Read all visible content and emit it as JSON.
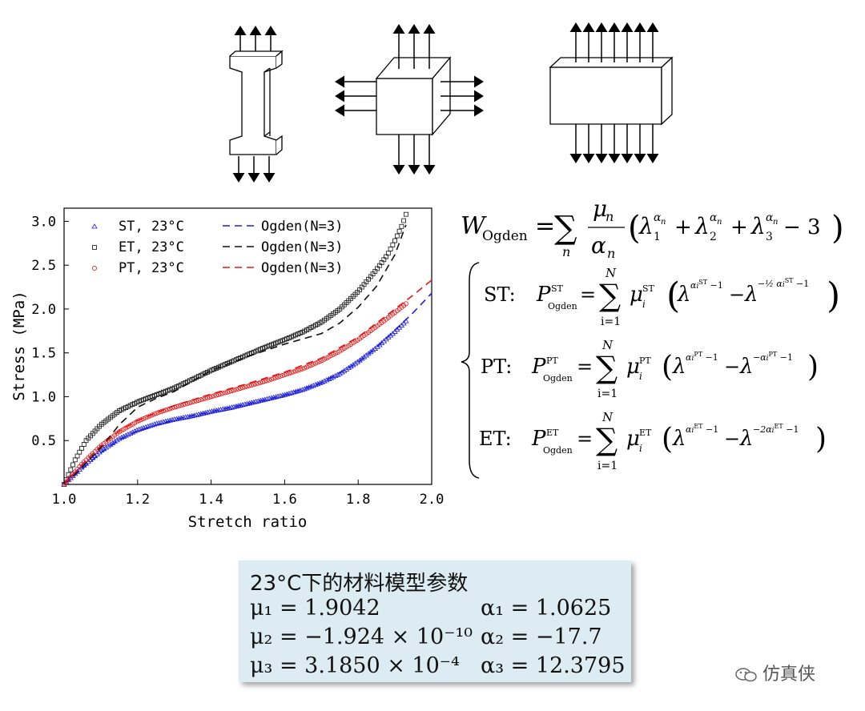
{
  "chart_data": {
    "type": "line",
    "xlabel": "Stretch ratio",
    "ylabel": "Stress (MPa)",
    "xlim": [
      1.0,
      2.0
    ],
    "ylim": [
      0.0,
      3.15
    ],
    "xticks": [
      "1.0",
      "1.2",
      "1.4",
      "1.6",
      "1.8",
      "2.0"
    ],
    "yticks": [
      "0.5",
      "1.0",
      "1.5",
      "2.0",
      "2.5",
      "3.0"
    ],
    "legend_position": "top-left",
    "grid": false,
    "series": [
      {
        "name": "ST, 23°C",
        "style": "markers",
        "marker": "triangle",
        "color": "#1f1fd6",
        "x": [
          1.0,
          1.05,
          1.1,
          1.15,
          1.2,
          1.25,
          1.3,
          1.35,
          1.4,
          1.45,
          1.5,
          1.55,
          1.6,
          1.65,
          1.7,
          1.75,
          1.8,
          1.85,
          1.9,
          1.93
        ],
        "y": [
          0.0,
          0.2,
          0.38,
          0.52,
          0.62,
          0.69,
          0.74,
          0.78,
          0.83,
          0.87,
          0.92,
          0.97,
          1.02,
          1.08,
          1.16,
          1.26,
          1.4,
          1.56,
          1.74,
          1.86
        ]
      },
      {
        "name": "ET, 23°C",
        "style": "markers",
        "marker": "square",
        "color": "#111111",
        "x": [
          1.0,
          1.03,
          1.06,
          1.1,
          1.15,
          1.2,
          1.25,
          1.3,
          1.35,
          1.4,
          1.45,
          1.5,
          1.55,
          1.6,
          1.65,
          1.7,
          1.75,
          1.8,
          1.85,
          1.88,
          1.9,
          1.92,
          1.93
        ],
        "y": [
          0.0,
          0.28,
          0.5,
          0.68,
          0.84,
          0.94,
          1.02,
          1.1,
          1.2,
          1.3,
          1.39,
          1.48,
          1.57,
          1.65,
          1.74,
          1.85,
          2.0,
          2.2,
          2.45,
          2.62,
          2.78,
          2.96,
          3.08
        ]
      },
      {
        "name": "PT, 23°C",
        "style": "markers",
        "marker": "circle",
        "color": "#e01818",
        "x": [
          1.0,
          1.05,
          1.1,
          1.15,
          1.2,
          1.25,
          1.3,
          1.35,
          1.4,
          1.45,
          1.5,
          1.55,
          1.6,
          1.65,
          1.7,
          1.75,
          1.8,
          1.85,
          1.9,
          1.93
        ],
        "y": [
          0.0,
          0.24,
          0.44,
          0.6,
          0.72,
          0.81,
          0.88,
          0.94,
          1.0,
          1.06,
          1.12,
          1.18,
          1.25,
          1.32,
          1.41,
          1.52,
          1.65,
          1.8,
          1.96,
          2.06
        ]
      },
      {
        "name": "Ogden(N=3)",
        "style": "dashed",
        "color": "#1f1fd6",
        "x": [
          1.0,
          1.05,
          1.1,
          1.15,
          1.2,
          1.3,
          1.4,
          1.5,
          1.6,
          1.7,
          1.8,
          1.85,
          1.9,
          1.95,
          2.0
        ],
        "y": [
          0.0,
          0.18,
          0.36,
          0.51,
          0.61,
          0.74,
          0.83,
          0.92,
          1.02,
          1.16,
          1.39,
          1.56,
          1.76,
          1.96,
          2.18
        ]
      },
      {
        "name": "Ogden(N=3)",
        "style": "dashed",
        "color": "#111111",
        "x": [
          1.0,
          1.05,
          1.1,
          1.15,
          1.2,
          1.25,
          1.3,
          1.4,
          1.5,
          1.6,
          1.7,
          1.75,
          1.8,
          1.85,
          1.9,
          1.93
        ],
        "y": [
          0.0,
          0.2,
          0.42,
          0.68,
          0.88,
          0.98,
          1.06,
          1.3,
          1.46,
          1.6,
          1.72,
          1.84,
          2.02,
          2.26,
          2.62,
          2.96
        ]
      },
      {
        "name": "Ogden(N=3)",
        "style": "dashed",
        "color": "#e01818",
        "x": [
          1.0,
          1.05,
          1.1,
          1.15,
          1.2,
          1.3,
          1.4,
          1.5,
          1.6,
          1.7,
          1.8,
          1.85,
          1.9,
          1.95,
          2.0
        ],
        "y": [
          0.0,
          0.23,
          0.44,
          0.61,
          0.73,
          0.9,
          1.03,
          1.15,
          1.28,
          1.44,
          1.68,
          1.84,
          2.0,
          2.16,
          2.33
        ]
      }
    ],
    "legend": {
      "markers": [
        "ST, 23°C",
        "ET, 23°C",
        "PT, 23°C"
      ],
      "fits": [
        "Ogden(N=3)",
        "Ogden(N=3)",
        "Ogden(N=3)"
      ]
    }
  },
  "formulas": {
    "main": {
      "lhs": "W",
      "lhs_sub": "Ogden",
      "eq": "=",
      "sum": "∑",
      "sum_sub": "n",
      "mu": "μ",
      "alpha": "α",
      "n": "n",
      "lambda": "λ",
      "plus": "+",
      "minus3": "− 3"
    },
    "st": {
      "label": "ST:",
      "P": "P",
      "sup": "ST",
      "sub": "Ogden",
      "exp2": "−½ α_i^{ST} −1"
    },
    "pt": {
      "label": "PT:",
      "P": "P",
      "sup": "PT",
      "sub": "Ogden"
    },
    "et": {
      "label": "ET:",
      "P": "P",
      "sup": "ET",
      "sub": "Ogden"
    },
    "sum_top": "N",
    "sum_bottom": "i=1"
  },
  "params": {
    "title": "23°C下的材料模型参数",
    "rows": [
      {
        "left": "μ₁ = 1.9042",
        "right": "α₁ = 1.0625"
      },
      {
        "left": "μ₂ = −1.924 × 10⁻¹⁰",
        "right": "α₂ = −17.7"
      },
      {
        "left": "μ₃ = 3.1850 × 10⁻⁴",
        "right": "α₃ = 12.3795"
      }
    ]
  },
  "watermark": "仿真侠"
}
